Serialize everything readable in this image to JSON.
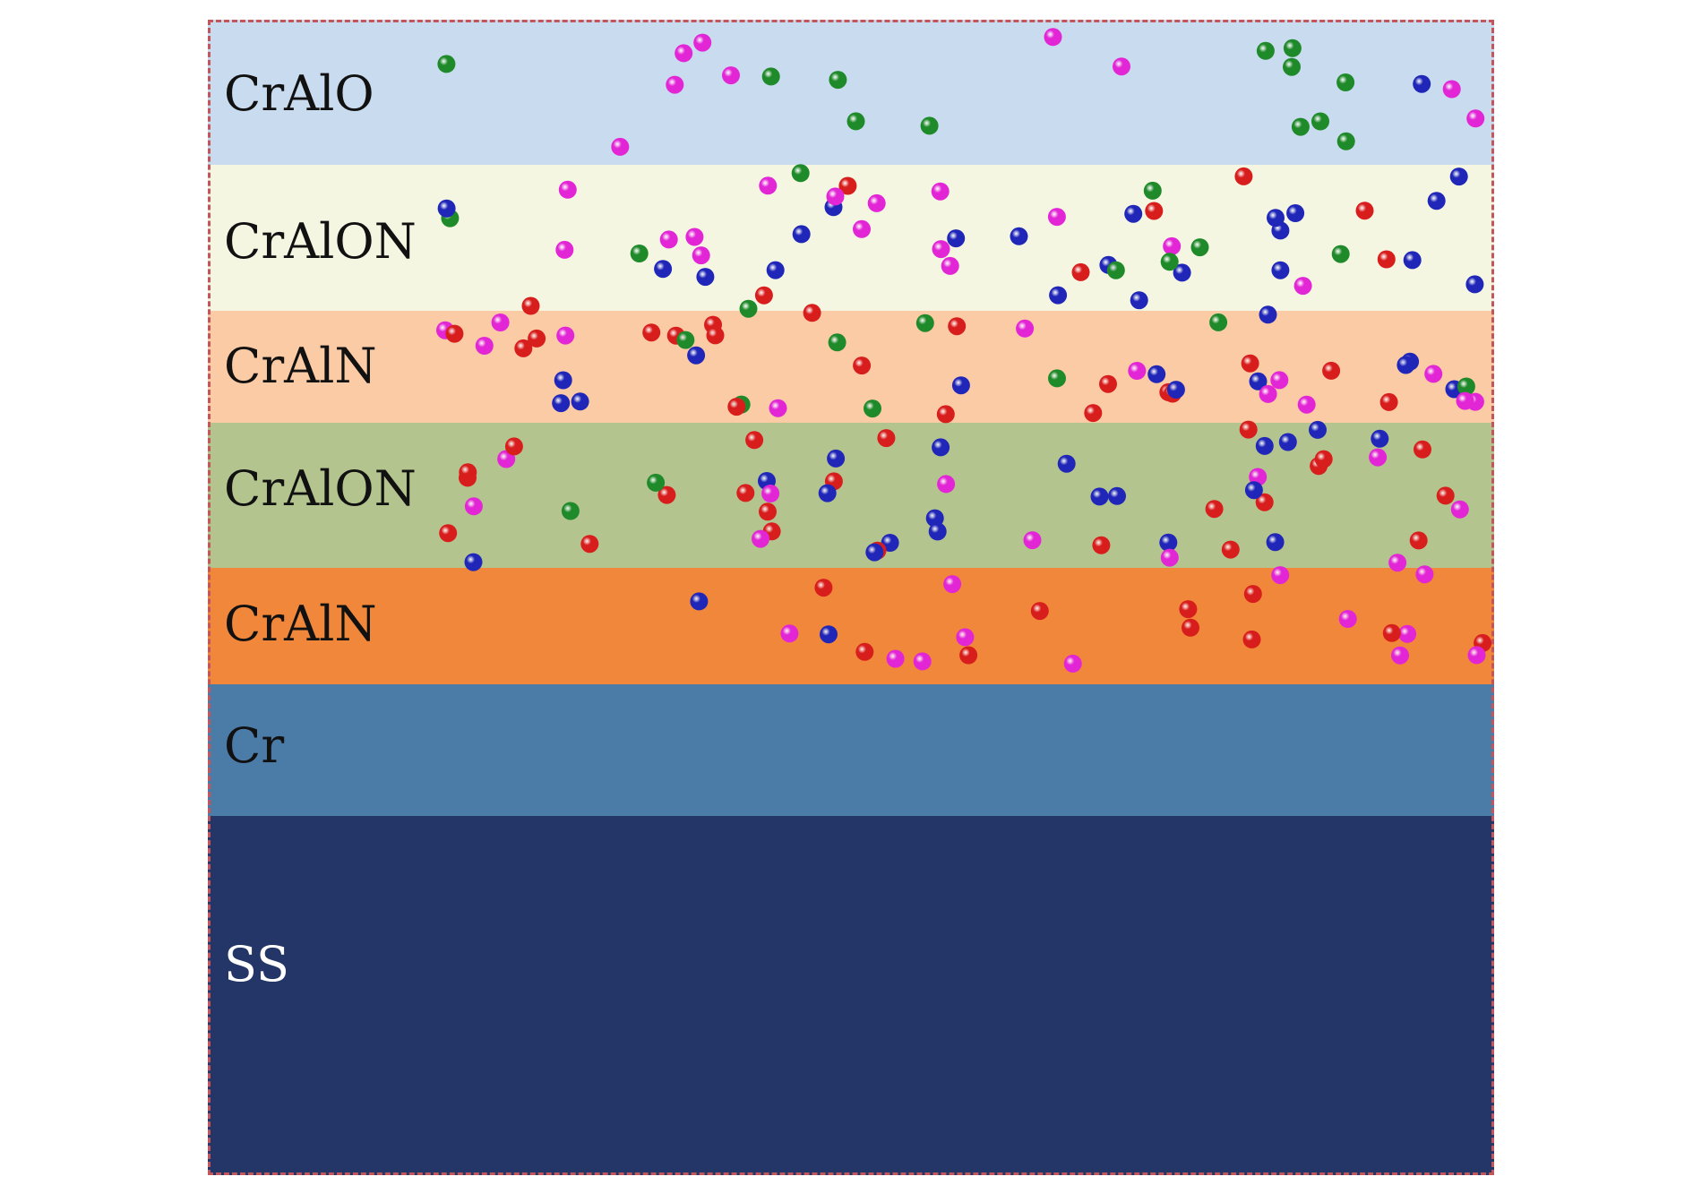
{
  "layers": [
    {
      "label": "CrAlO",
      "color": "#c9dbee",
      "label_color": "#111111"
    },
    {
      "label": "CrAlON",
      "color": "#f5f6e2",
      "label_color": "#111111"
    },
    {
      "label": "CrAlN",
      "color": "#fbcba6",
      "label_color": "#111111"
    },
    {
      "label": "CrAlON",
      "color": "#b4c48e",
      "label_color": "#111111"
    },
    {
      "label": "CrAlN",
      "color": "#f0873a",
      "label_color": "#111111"
    },
    {
      "label": "Cr",
      "color": "#4b7ca8",
      "label_color": "#111111"
    },
    {
      "label": "SS",
      "color": "#243668",
      "label_color": "#ffffff"
    }
  ],
  "atom_colors": {
    "red": "#d81d1d",
    "blue": "#1f26b8",
    "green": "#1f8a2a",
    "magenta": "#e226d6"
  },
  "frame_color": "#c2565a"
}
